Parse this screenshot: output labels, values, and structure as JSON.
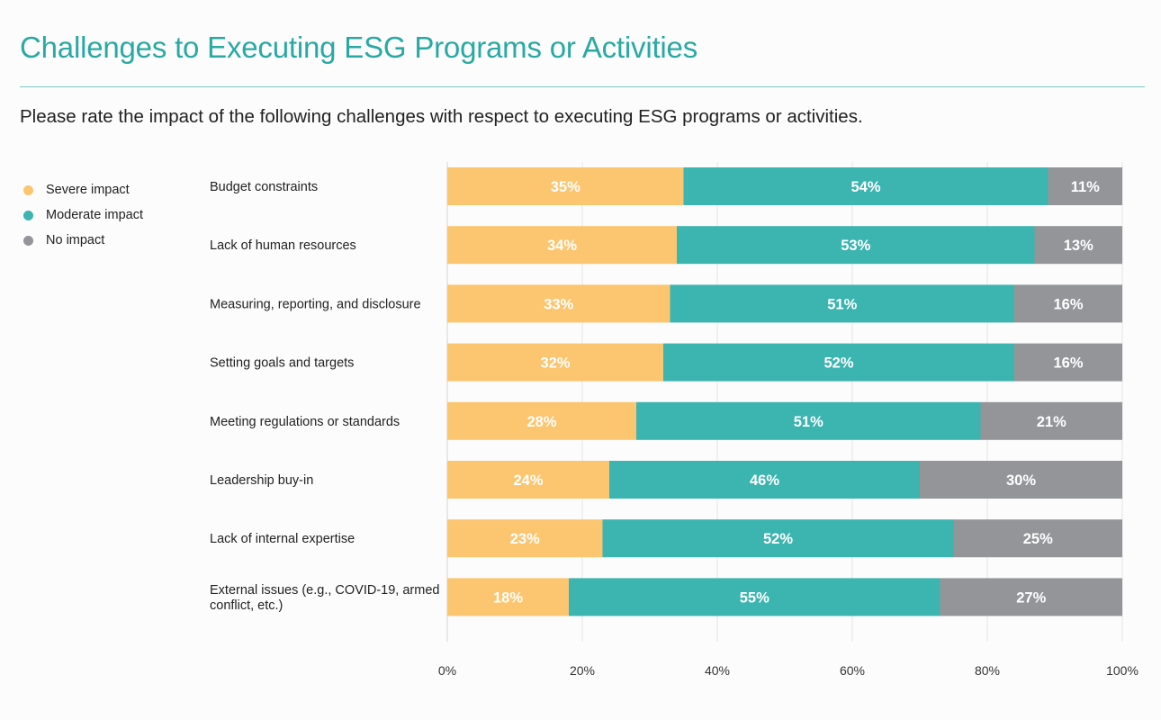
{
  "header": {
    "title": "Challenges to Executing ESG Programs or Activities",
    "subtitle": "Please rate the impact of the following challenges with respect to executing ESG programs or activities."
  },
  "chart_data": {
    "type": "bar",
    "orientation": "horizontal",
    "stacked": true,
    "categories": [
      [
        "Budget constraints"
      ],
      [
        "Lack of human resources"
      ],
      [
        "Measuring, reporting, and disclosure"
      ],
      [
        "Setting goals and targets"
      ],
      [
        "Meeting regulations or standards"
      ],
      [
        "Leadership buy-in"
      ],
      [
        "Lack of internal expertise"
      ],
      [
        "External issues (e.g., COVID-19, armed",
        "conflict, etc.)"
      ]
    ],
    "series": [
      {
        "name": "Severe impact",
        "color": "#fcc56f",
        "values": [
          35,
          34,
          33,
          32,
          28,
          24,
          23,
          18
        ]
      },
      {
        "name": "Moderate impact",
        "color": "#3cb4b0",
        "values": [
          54,
          53,
          51,
          52,
          51,
          46,
          52,
          55
        ]
      },
      {
        "name": "No impact",
        "color": "#939598",
        "values": [
          11,
          13,
          16,
          16,
          21,
          30,
          25,
          27
        ]
      }
    ],
    "value_suffix": "%",
    "xlim": [
      0,
      100
    ],
    "xticks": [
      "0%",
      "20%",
      "40%",
      "60%",
      "80%",
      "100%"
    ],
    "grid": true,
    "legend_position": "left"
  }
}
